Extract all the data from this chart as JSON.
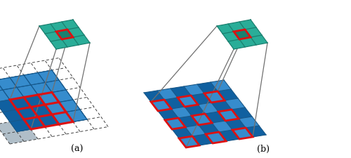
{
  "fig_width": 5.0,
  "fig_height": 2.25,
  "dpi": 100,
  "bg_color": "#ffffff",
  "teal_dark": "#1a8070",
  "teal_light": "#2aad98",
  "teal_mid": "#22998a",
  "blue_dark": "#1060a0",
  "blue_mid": "#2080c8",
  "blue_light": "#60aadc",
  "gray_light": "#b0bec8",
  "gray_mid": "#8090a0",
  "red": "#dd1111",
  "dashed_color": "#404040",
  "line_color": "#707070",
  "label_a": "(a)",
  "label_b": "(b)",
  "label_fontsize": 9
}
